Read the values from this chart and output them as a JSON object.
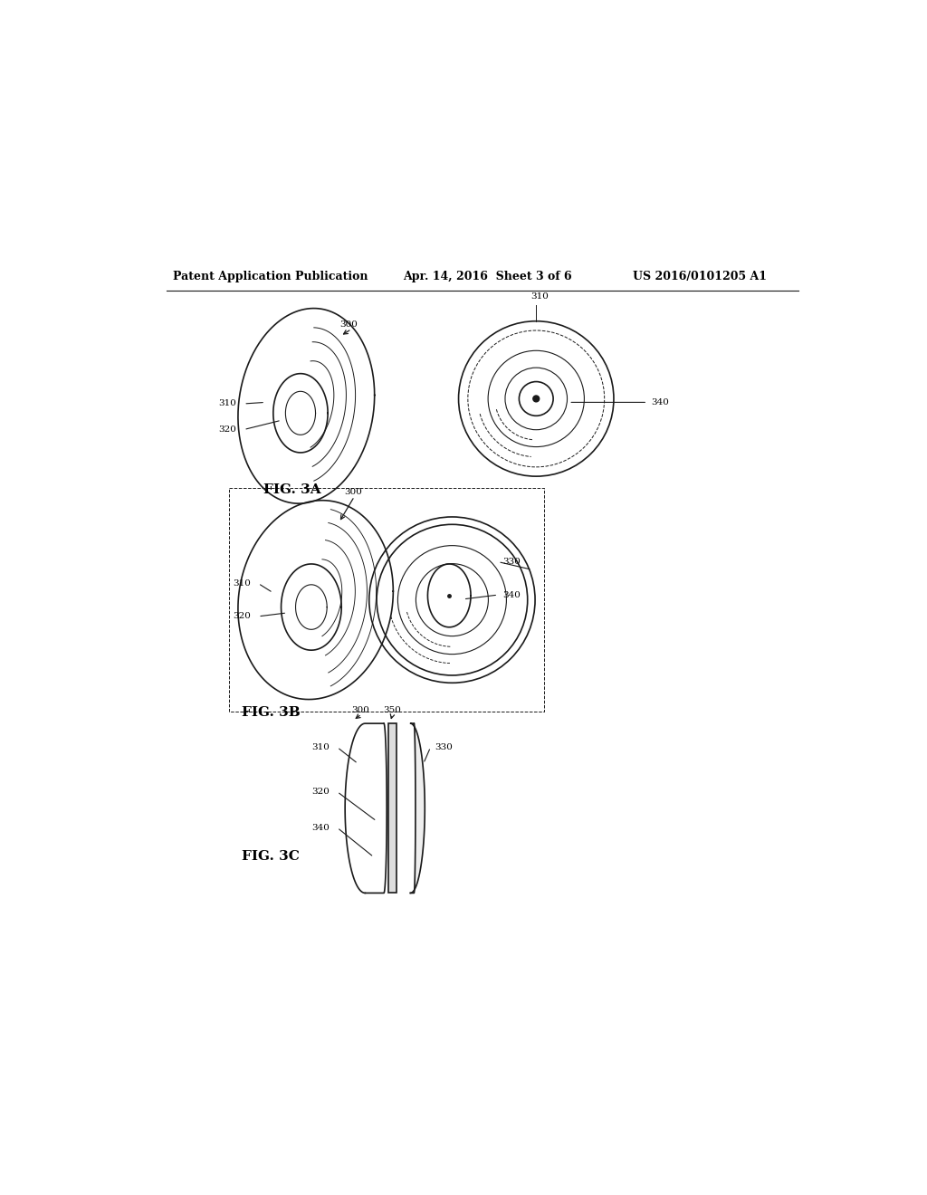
{
  "bg_color": "#ffffff",
  "line_color": "#1a1a1a",
  "text_color": "#000000",
  "header_left": "Patent Application Publication",
  "header_center": "Apr. 14, 2016  Sheet 3 of 6",
  "header_right": "US 2016/0101205 A1",
  "fig3a_label": "FIG. 3A",
  "fig3b_label": "FIG. 3B",
  "fig3c_label": "FIG. 3C"
}
